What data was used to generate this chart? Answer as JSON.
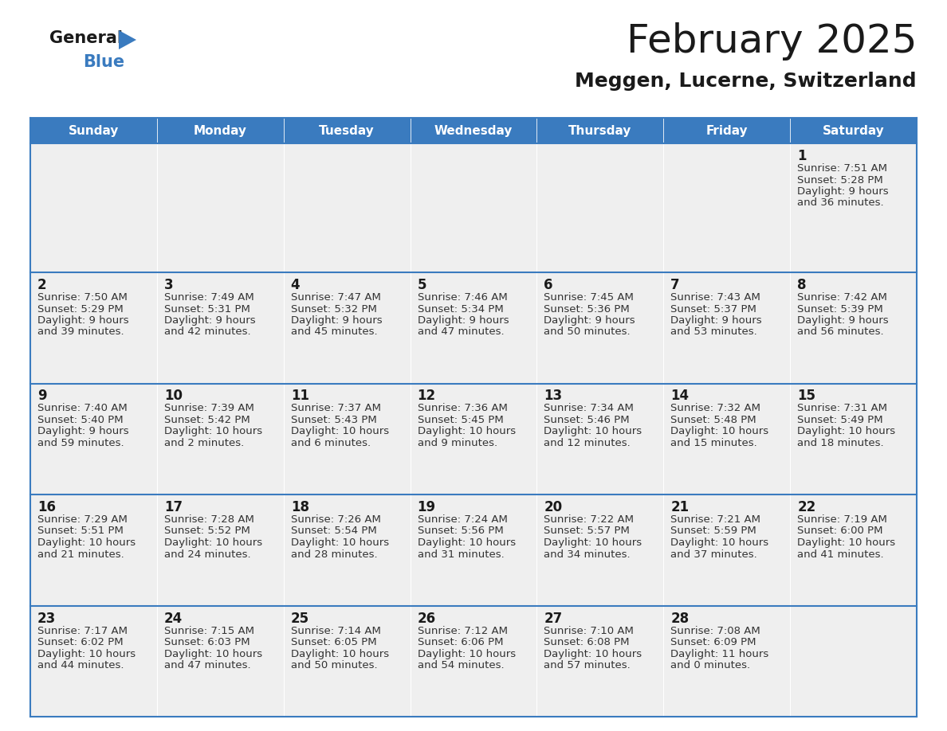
{
  "title": "February 2025",
  "subtitle": "Meggen, Lucerne, Switzerland",
  "header_color": "#3a7bbf",
  "header_text_color": "#ffffff",
  "cell_bg_color": "#efefef",
  "border_color": "#3a7bbf",
  "day_num_color": "#1a1a1a",
  "text_color": "#333333",
  "days_of_week": [
    "Sunday",
    "Monday",
    "Tuesday",
    "Wednesday",
    "Thursday",
    "Friday",
    "Saturday"
  ],
  "calendar_data": [
    [
      null,
      null,
      null,
      null,
      null,
      null,
      {
        "day": "1",
        "sunrise": "7:51 AM",
        "sunset": "5:28 PM",
        "dl1": "9 hours",
        "dl2": "and 36 minutes."
      }
    ],
    [
      {
        "day": "2",
        "sunrise": "7:50 AM",
        "sunset": "5:29 PM",
        "dl1": "9 hours",
        "dl2": "and 39 minutes."
      },
      {
        "day": "3",
        "sunrise": "7:49 AM",
        "sunset": "5:31 PM",
        "dl1": "9 hours",
        "dl2": "and 42 minutes."
      },
      {
        "day": "4",
        "sunrise": "7:47 AM",
        "sunset": "5:32 PM",
        "dl1": "9 hours",
        "dl2": "and 45 minutes."
      },
      {
        "day": "5",
        "sunrise": "7:46 AM",
        "sunset": "5:34 PM",
        "dl1": "9 hours",
        "dl2": "and 47 minutes."
      },
      {
        "day": "6",
        "sunrise": "7:45 AM",
        "sunset": "5:36 PM",
        "dl1": "9 hours",
        "dl2": "and 50 minutes."
      },
      {
        "day": "7",
        "sunrise": "7:43 AM",
        "sunset": "5:37 PM",
        "dl1": "9 hours",
        "dl2": "and 53 minutes."
      },
      {
        "day": "8",
        "sunrise": "7:42 AM",
        "sunset": "5:39 PM",
        "dl1": "9 hours",
        "dl2": "and 56 minutes."
      }
    ],
    [
      {
        "day": "9",
        "sunrise": "7:40 AM",
        "sunset": "5:40 PM",
        "dl1": "9 hours",
        "dl2": "and 59 minutes."
      },
      {
        "day": "10",
        "sunrise": "7:39 AM",
        "sunset": "5:42 PM",
        "dl1": "10 hours",
        "dl2": "and 2 minutes."
      },
      {
        "day": "11",
        "sunrise": "7:37 AM",
        "sunset": "5:43 PM",
        "dl1": "10 hours",
        "dl2": "and 6 minutes."
      },
      {
        "day": "12",
        "sunrise": "7:36 AM",
        "sunset": "5:45 PM",
        "dl1": "10 hours",
        "dl2": "and 9 minutes."
      },
      {
        "day": "13",
        "sunrise": "7:34 AM",
        "sunset": "5:46 PM",
        "dl1": "10 hours",
        "dl2": "and 12 minutes."
      },
      {
        "day": "14",
        "sunrise": "7:32 AM",
        "sunset": "5:48 PM",
        "dl1": "10 hours",
        "dl2": "and 15 minutes."
      },
      {
        "day": "15",
        "sunrise": "7:31 AM",
        "sunset": "5:49 PM",
        "dl1": "10 hours",
        "dl2": "and 18 minutes."
      }
    ],
    [
      {
        "day": "16",
        "sunrise": "7:29 AM",
        "sunset": "5:51 PM",
        "dl1": "10 hours",
        "dl2": "and 21 minutes."
      },
      {
        "day": "17",
        "sunrise": "7:28 AM",
        "sunset": "5:52 PM",
        "dl1": "10 hours",
        "dl2": "and 24 minutes."
      },
      {
        "day": "18",
        "sunrise": "7:26 AM",
        "sunset": "5:54 PM",
        "dl1": "10 hours",
        "dl2": "and 28 minutes."
      },
      {
        "day": "19",
        "sunrise": "7:24 AM",
        "sunset": "5:56 PM",
        "dl1": "10 hours",
        "dl2": "and 31 minutes."
      },
      {
        "day": "20",
        "sunrise": "7:22 AM",
        "sunset": "5:57 PM",
        "dl1": "10 hours",
        "dl2": "and 34 minutes."
      },
      {
        "day": "21",
        "sunrise": "7:21 AM",
        "sunset": "5:59 PM",
        "dl1": "10 hours",
        "dl2": "and 37 minutes."
      },
      {
        "day": "22",
        "sunrise": "7:19 AM",
        "sunset": "6:00 PM",
        "dl1": "10 hours",
        "dl2": "and 41 minutes."
      }
    ],
    [
      {
        "day": "23",
        "sunrise": "7:17 AM",
        "sunset": "6:02 PM",
        "dl1": "10 hours",
        "dl2": "and 44 minutes."
      },
      {
        "day": "24",
        "sunrise": "7:15 AM",
        "sunset": "6:03 PM",
        "dl1": "10 hours",
        "dl2": "and 47 minutes."
      },
      {
        "day": "25",
        "sunrise": "7:14 AM",
        "sunset": "6:05 PM",
        "dl1": "10 hours",
        "dl2": "and 50 minutes."
      },
      {
        "day": "26",
        "sunrise": "7:12 AM",
        "sunset": "6:06 PM",
        "dl1": "10 hours",
        "dl2": "and 54 minutes."
      },
      {
        "day": "27",
        "sunrise": "7:10 AM",
        "sunset": "6:08 PM",
        "dl1": "10 hours",
        "dl2": "and 57 minutes."
      },
      {
        "day": "28",
        "sunrise": "7:08 AM",
        "sunset": "6:09 PM",
        "dl1": "11 hours",
        "dl2": "and 0 minutes."
      },
      null
    ]
  ]
}
